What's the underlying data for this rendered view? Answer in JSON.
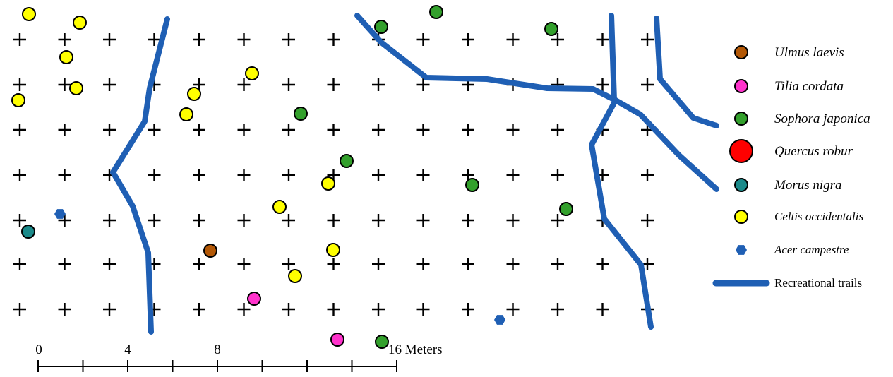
{
  "map": {
    "legend": [
      {
        "label": "Ulmus laevis",
        "italic": true,
        "symbol": "circle",
        "fill": "#b35806"
      },
      {
        "label": "Tilia cordata",
        "italic": true,
        "symbol": "circle",
        "fill": "#ff33cc"
      },
      {
        "label": "Sophora japonica",
        "italic": true,
        "symbol": "circle",
        "fill": "#33a02c"
      },
      {
        "label": "Quercus robur",
        "italic": true,
        "symbol": "circle-large",
        "fill": "#ff0000"
      },
      {
        "label": "Morus nigra",
        "italic": true,
        "symbol": "circle",
        "fill": "#1b8a8a"
      },
      {
        "label": "Celtis occidentalis",
        "italic": true,
        "symbol": "circle",
        "fill": "#ffff00"
      },
      {
        "label": "Acer campestre",
        "italic": true,
        "symbol": "hexagon",
        "fill": "#1f5fb4"
      },
      {
        "label": "Recreational trails",
        "italic": false,
        "symbol": "line",
        "fill": "#1f5fb4"
      }
    ],
    "scale_bar": {
      "labels": [
        "0",
        "4",
        "8",
        "16 Meters"
      ]
    },
    "colors": {
      "trail": "#1f5fb4",
      "grid_marker": "#000000"
    }
  }
}
